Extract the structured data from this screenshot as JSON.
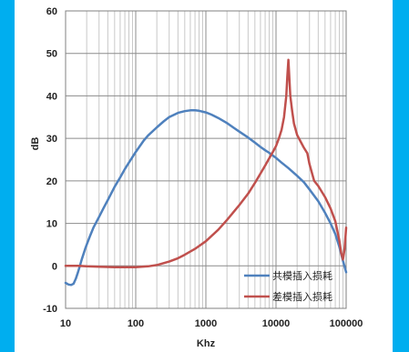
{
  "chart_data": {
    "type": "line",
    "xlabel": "Khz",
    "ylabel": "dB",
    "x_scale": "log",
    "xlim": [
      10,
      100000
    ],
    "ylim": [
      -10,
      60
    ],
    "x_ticks": [
      10,
      100,
      1000,
      10000,
      100000
    ],
    "x_tick_labels": [
      "10",
      "100",
      "1000",
      "10000",
      "100000"
    ],
    "y_ticks": [
      -10,
      0,
      10,
      20,
      30,
      40,
      50,
      60
    ],
    "y_tick_labels": [
      "-10",
      "0",
      "10",
      "20",
      "30",
      "40",
      "50",
      "60"
    ],
    "grid": true,
    "legend_position": "bottom-right",
    "series": [
      {
        "name": "共模插入损耗",
        "color": "#4F81BD",
        "x": [
          10,
          11,
          12,
          13,
          14,
          15,
          16,
          17,
          18,
          19,
          20,
          22,
          25,
          30,
          35,
          40,
          50,
          60,
          70,
          80,
          100,
          130,
          150,
          200,
          250,
          300,
          400,
          500,
          600,
          700,
          800,
          1000,
          1200,
          1500,
          2000,
          2500,
          3000,
          4000,
          5000,
          6000,
          7000,
          8000,
          10000,
          12000,
          15000,
          20000,
          25000,
          30000,
          40000,
          50000,
          60000,
          70000,
          80000,
          90000,
          100000
        ],
        "y": [
          -4,
          -4.4,
          -4.5,
          -4.2,
          -3.0,
          -1.5,
          0.0,
          1.5,
          2.8,
          4.0,
          5.0,
          6.8,
          9.0,
          11.5,
          13.7,
          15.5,
          18.6,
          20.8,
          22.8,
          24.3,
          26.8,
          29.5,
          30.7,
          32.6,
          34.0,
          35.0,
          36.0,
          36.4,
          36.6,
          36.6,
          36.5,
          36.1,
          35.6,
          34.8,
          33.6,
          32.5,
          31.6,
          30.2,
          29.0,
          28.0,
          27.2,
          26.6,
          25.4,
          24.3,
          23.0,
          21.2,
          19.7,
          18.0,
          15.2,
          12.5,
          10.0,
          7.5,
          4.5,
          1.2,
          -1.5
        ]
      },
      {
        "name": "差模插入损耗",
        "color": "#C0504D",
        "x": [
          10,
          12,
          15,
          20,
          30,
          50,
          70,
          100,
          150,
          200,
          300,
          400,
          500,
          700,
          1000,
          1500,
          2000,
          3000,
          4000,
          5000,
          6000,
          7000,
          8000,
          9000,
          10000,
          11000,
          12000,
          13000,
          14000,
          14500,
          15000,
          15500,
          16000,
          17000,
          18000,
          20000,
          22000,
          25000,
          28000,
          30000,
          35000,
          40000,
          50000,
          60000,
          70000,
          80000,
          85000,
          90000,
          95000,
          100000
        ],
        "y": [
          0,
          0,
          0,
          -0.1,
          -0.2,
          -0.3,
          -0.3,
          -0.3,
          -0.1,
          0.2,
          1.0,
          1.8,
          2.6,
          4.0,
          5.8,
          8.5,
          10.8,
          14.3,
          17.0,
          19.5,
          21.7,
          23.6,
          25.3,
          26.8,
          28.2,
          30.0,
          32.0,
          35.0,
          40.0,
          44.5,
          48.5,
          44.0,
          40.0,
          36.5,
          33.5,
          30.8,
          29.5,
          27.8,
          26.5,
          24.0,
          20.0,
          18.8,
          16.2,
          13.5,
          10.5,
          6.0,
          3.0,
          1.5,
          4.0,
          9.0
        ]
      }
    ]
  }
}
